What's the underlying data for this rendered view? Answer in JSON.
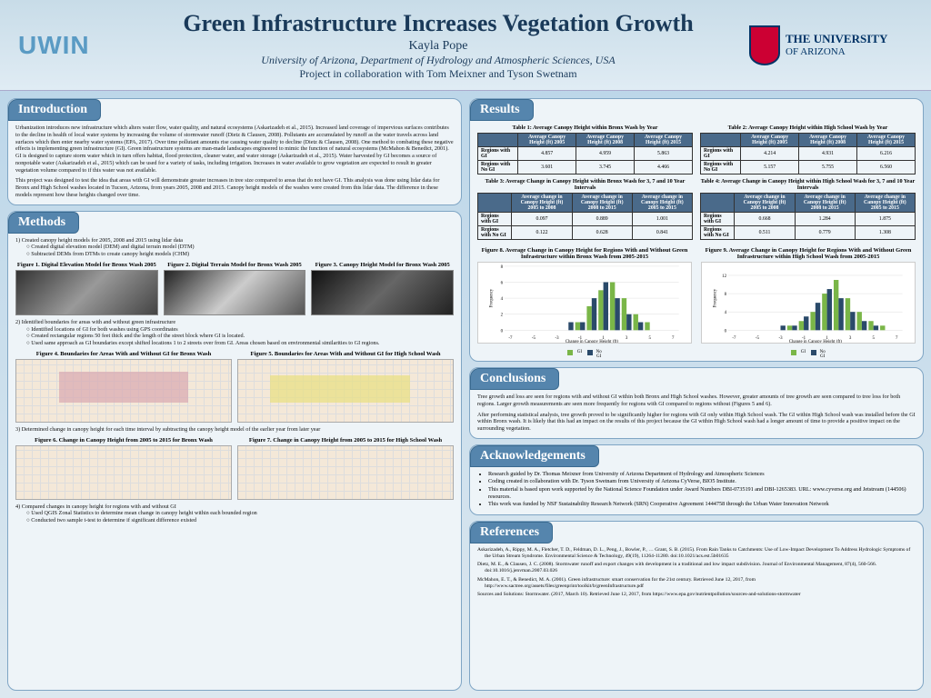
{
  "header": {
    "logo_left": "UWIN",
    "title": "Green Infrastructure Increases Vegetation Growth",
    "author": "Kayla Pope",
    "affiliation": "University of Arizona, Department of Hydrology and Atmospheric Sciences, USA",
    "collaboration": "Project in collaboration with Tom Meixner and Tyson Swetnam",
    "logo_right_line1": "THE UNIVERSITY",
    "logo_right_line2": "OF ARIZONA"
  },
  "sections": {
    "introduction": {
      "title": "Introduction",
      "p1": "Urbanization introduces new infrastructure which alters water flow, water quality, and natural ecosystems (Askarizadeh et al., 2015). Increased land coverage of impervious surfaces contributes to the decline in health of local water systems by increasing the volume of stormwater runoff (Dietz & Clausen, 2008). Pollutants are accumulated by runoff as the water travels across land surfaces which then enter nearby water systems (EPA, 2017). Over time pollutant amounts rise causing water quality to decline (Dietz & Clausen, 2008). One method to combating these negative effects is implementing green infrastructure (GI). Green infrastructure systems are man-made landscapes engineered to mimic the function of natural ecosystems (McMahon & Benedict, 2001). GI is designed to capture storm water which in turn offers habitat, flood protection, cleaner water, and water storage (Askarizadeh et al., 2015). Water harvested by GI becomes a source of nonpotable water (Askarizadeh et al., 2015) which can be used for a variety of tasks, including irrigation. Increases in water available to grow vegetation are expected to result in greater vegetation volume compared to if this water was not available.",
      "p2": "This project was designed to test the idea that areas with GI will demonstrate greater increases in tree size compared to areas that do not have GI. This analysis was done using lidar data for Bronx and High School washes located in Tucson, Arizona, from years 2005, 2008 and 2015. Canopy height models of the washes were created from this lidar data. The difference in these models represent how these heights changed over time."
    },
    "methods": {
      "title": "Methods",
      "step1": "1)  Created canopy height models for 2005, 2008 and 2015 using lidar data",
      "step1a": "Created digital elevation model (DEM) and digital terrain model (DTM)",
      "step1b": "Subtracted DEMs from DTMs to create canopy height models (CHM)",
      "fig1": "Figure 1. Digital Elevation Model for Bronx Wash 2005",
      "fig2": "Figure 2. Digital Terrain Model for Bronx Wash 2005",
      "fig3": "Figure 3. Canopy Height Model for Bronx Wash 2005",
      "step2": "2)  Identified boundaries for areas with and without green infrastructure",
      "step2a": "Identified locations of GI for both washes using GPS coordinates",
      "step2b": "Created rectangular regions 50 feet thick and the length of the street block where GI is located.",
      "step2c": "Used same approach as GI boundaries except shifted locations 1 to 2 streets over from GI. Areas chosen based on environmental similarities to GI regions.",
      "fig4": "Figure 4. Boundaries for Areas With and Without GI for Bronx Wash",
      "fig5": "Figure 5. Boundaries for Areas With and Without GI for High School Wash",
      "step3": "3)  Determined change in canopy height for each time interval by subtracting the canopy height model of the earlier year from later year",
      "fig6": "Figure 6. Change in Canopy Height from 2005 to 2015 for Bronx Wash",
      "fig7": "Figure 7. Change in Canopy Height from 2005 to 2015 for High School Wash",
      "step4": "4)  Compared changes in canopy height for regions with and without GI",
      "step4a": "Used QGIS Zonal Statistics to determine mean change in canopy height within each bounded region",
      "step4b": "Conducted two sample t-test to determine if significant difference existed"
    },
    "results": {
      "title": "Results",
      "table1": {
        "title": "Table 1: Average Canopy Height within Bronx Wash by Year",
        "columns": [
          "",
          "Average Canopy Height (ft) 2005",
          "Average Canopy Height (ft) 2008",
          "Average Canopy Height (ft) 2015"
        ],
        "rows": [
          [
            "Regions with GI",
            "4.857",
            "4.959",
            "5.863"
          ],
          [
            "Regions with No GI",
            "3.601",
            "3.745",
            "4.466"
          ]
        ]
      },
      "table2": {
        "title": "Table 2: Average Canopy Height within High School Wash by Year",
        "columns": [
          "",
          "Average Canopy Height (ft) 2005",
          "Average Canopy Height (ft) 2008",
          "Average Canopy Height (ft) 2015"
        ],
        "rows": [
          [
            "Regions with GI",
            "4.214",
            "4.931",
            "6.216"
          ],
          [
            "Regions with No GI",
            "5.157",
            "5.755",
            "6.560"
          ]
        ]
      },
      "table3": {
        "title": "Table 3: Average Change in Canopy Height within Bronx Wash for 3, 7 and 10 Year Intervals",
        "columns": [
          "",
          "Average change in Canopy Height (ft) 2005 to 2008",
          "Average change in Canopy Height (ft) 2008 to 2015",
          "Average change in Canopy Height (ft) 2005 to 2015"
        ],
        "rows": [
          [
            "Regions with GI",
            "0.097",
            "0.889",
            "1.001"
          ],
          [
            "Regions with No GI",
            "0.122",
            "0.628",
            "0.841"
          ]
        ]
      },
      "table4": {
        "title": "Table 4: Average Change in Canopy Height within High School Wash for 3, 7 and 10 Year Intervals",
        "columns": [
          "",
          "Average change in Canopy Height (ft) 2005 to 2008",
          "Average change in Canopy Height (ft) 2008 to 2015",
          "Average change in Canopy Height (ft) 2005 to 2015"
        ],
        "rows": [
          [
            "Regions with GI",
            "0.668",
            "1.284",
            "1.875"
          ],
          [
            "Regions with No GI",
            "0.511",
            "0.779",
            "1.308"
          ]
        ]
      },
      "fig8_title": "Figure 8. Average Change in Canopy Height for Regions With and Without Green Infrastructure within Bronx Wash from 2005-2015",
      "fig9_title": "Figure 9. Average Change in Canopy Height for Regions With and Without Green Infrastructure within High School Wash from 2005-2015",
      "chart": {
        "type": "histogram",
        "x_label": "Change in Canopy Height (ft)",
        "y_label": "Frequency",
        "legend_gi": "GI",
        "legend_nogi": "No GI",
        "color_gi": "#7ab648",
        "color_nogi": "#2a4a6a",
        "bins": [
          -7,
          -6,
          -5,
          -4,
          -3,
          -2,
          -1,
          0,
          1,
          2,
          3,
          4,
          5,
          6,
          7
        ],
        "fig8_gi": [
          0,
          0,
          0,
          0,
          0,
          0,
          1,
          3,
          5,
          6,
          4,
          2,
          1,
          0,
          0
        ],
        "fig8_nogi": [
          0,
          0,
          0,
          0,
          0,
          1,
          1,
          4,
          6,
          4,
          2,
          1,
          0,
          0,
          0
        ],
        "fig9_gi": [
          0,
          0,
          0,
          0,
          0,
          1,
          2,
          4,
          8,
          11,
          7,
          4,
          2,
          1,
          0
        ],
        "fig9_nogi": [
          0,
          0,
          0,
          0,
          1,
          1,
          3,
          6,
          9,
          7,
          4,
          2,
          1,
          0,
          0
        ],
        "fig8_ymax": 8,
        "fig9_ymax": 14,
        "background_color": "#ffffff",
        "grid_color": "#dddddd"
      }
    },
    "conclusions": {
      "title": "Conclusions",
      "p1": "Tree growth and loss are seen for regions with and without GI within both Bronx and High School washes. However, greater amounts of tree growth are seen compared to tree loss for both regions. Larger growth measurements are seen more frequently for regions with GI compared to regions without (Figures 5 and 6).",
      "p2": "After performing statistical analysis, tree growth proved to be significantly higher for regions with GI only within High School wash. The GI within High School wash was installed before the GI within Bronx wash. It is likely that this had an impact on the results of this project because the GI within High School wash had a longer amount of time to provide a positive impact on the surrounding vegetation."
    },
    "acknowledgements": {
      "title": "Acknowledgements",
      "items": [
        "Research guided by Dr. Thomas Meixner from University of Arizona Department of Hydrology and Atmospheric Sciences",
        "Coding created in collaboration with Dr. Tyson Swetnam from University of Arizona CyVerse, BIO5 Institute.",
        "This material is based upon work supported by the National Science Foundation under Award Numbers DBI-0735191 and DBI-1265383. URL: www.cyverse.org and Jetstream (144506) resources.",
        "This work was funded by NSF Sustainability Research Network (SRN) Cooperative Agreement 1444758 through the Urban Water Innovation Network"
      ]
    },
    "references": {
      "title": "References",
      "items": [
        "Askarizadeh, A., Rippy, M. A., Fletcher, T. D., Feldman, D. L., Peng, J., Bowler, P., … Grant, S. B. (2015). From Rain Tanks to Catchments: Use of Low-Impact Development To Address Hydrologic Symptoms of the Urban Stream Syndrome. Environmental Science & Technology, 49(19), 11264-11280. doi:10.1021/acs.est.5b01635",
        "Dietz, M. E., & Clausen, J. C. (2008). Stormwater runoff and export changes with development in a traditional and low impact subdivision. Journal of Environmental Management, 87(4), 560-566. doi:10.1016/j.jenvman.2007.03.026",
        "McMahon, E. T., & Benedict, M. A. (2001). Green infrastructure: smart conservation for the 21st century. Retrieved June 12, 2017, from http://www.sactree.org/assets/files/greenprint/toolkit/b/greenInfrastructure.pdf",
        "Sources and Solutions: Stormwater. (2017, March 10). Retrieved June 12, 2017, from https://www.epa.gov/nutrientpollution/sources-and-solutions-stormwater"
      ]
    }
  }
}
